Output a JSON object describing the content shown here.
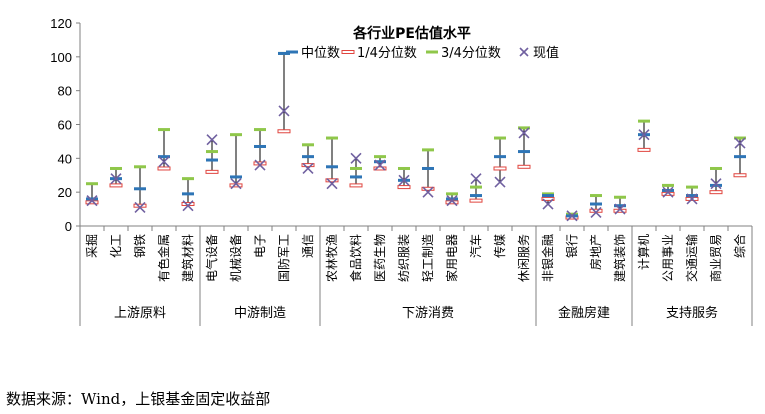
{
  "chart_data": {
    "type": "box-range",
    "title": "各行业PE估值水平",
    "ylim": [
      0,
      120
    ],
    "yticks": [
      0,
      20,
      40,
      60,
      80,
      100,
      120
    ],
    "legend": {
      "position": "top",
      "items": [
        {
          "key": "median",
          "label": "中位数",
          "color": "#2e75b6"
        },
        {
          "key": "q1",
          "label": "1/4分位数",
          "color": "#e0443e"
        },
        {
          "key": "q3",
          "label": "3/4分位数",
          "color": "#8fc74a"
        },
        {
          "key": "current",
          "label": "现值",
          "color": "#7060a0"
        }
      ]
    },
    "categories": [
      "采掘",
      "化工",
      "钢铁",
      "有色金属",
      "建筑材料",
      "电气设备",
      "机械设备",
      "电子",
      "国防军工",
      "通信",
      "农林牧渔",
      "食品饮料",
      "医药生物",
      "纺织服装",
      "轻工制造",
      "家用电器",
      "汽车",
      "传媒",
      "休闲服务",
      "非银金融",
      "银行",
      "房地产",
      "建筑装饰",
      "计算机",
      "公用事业",
      "交通运输",
      "商业贸易",
      "综合"
    ],
    "groups": [
      {
        "label": "上游原料",
        "start": 0,
        "end": 4
      },
      {
        "label": "中游制造",
        "start": 5,
        "end": 9
      },
      {
        "label": "下游消费",
        "start": 10,
        "end": 18
      },
      {
        "label": "金融房建",
        "start": 19,
        "end": 22
      },
      {
        "label": "支持服务",
        "start": 23,
        "end": 27
      }
    ],
    "series": [
      {
        "name": "1/4分位数",
        "key": "q1",
        "values": [
          14,
          24,
          12,
          34,
          13,
          32,
          24,
          37,
          56,
          36,
          27,
          24,
          34,
          23,
          22,
          14,
          15,
          34,
          35,
          16,
          5,
          9,
          9,
          45,
          19,
          16,
          20,
          30
        ]
      },
      {
        "name": "中位数",
        "key": "median",
        "values": [
          16,
          28,
          22,
          41,
          19,
          39,
          29,
          47,
          102,
          41,
          35,
          29,
          38,
          27,
          34,
          16,
          18,
          41,
          44,
          18,
          6,
          13,
          12,
          54,
          21,
          18,
          24,
          41
        ]
      },
      {
        "name": "3/4分位数",
        "key": "q3",
        "values": [
          25,
          34,
          35,
          57,
          28,
          44,
          54,
          57,
          102,
          48,
          52,
          34,
          41,
          34,
          45,
          19,
          23,
          52,
          58,
          19,
          7,
          18,
          17,
          62,
          24,
          23,
          34,
          52
        ]
      },
      {
        "name": "现值",
        "key": "current",
        "values": [
          15,
          28,
          11,
          38,
          12,
          51,
          25,
          36,
          68,
          34,
          25,
          40,
          36,
          27,
          20,
          15,
          28,
          26,
          55,
          13,
          6,
          8,
          10,
          54,
          20,
          16,
          25,
          49
        ]
      }
    ]
  },
  "source_note": "数据来源：Wind，上银基金固定收益部"
}
